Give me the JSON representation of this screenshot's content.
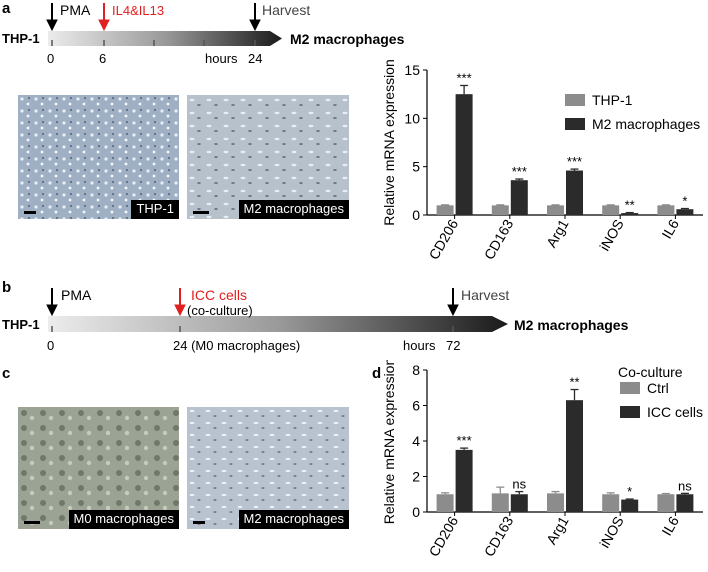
{
  "panels": {
    "a": "a",
    "b": "b",
    "c": "c",
    "d": "d"
  },
  "timeline_a": {
    "cell_line": "THP-1",
    "result": "M2 macrophages",
    "events": {
      "pma": "PMA",
      "cytokines": "IL4&IL13",
      "harvest": "Harvest"
    },
    "ticks": {
      "t0": "0",
      "t6": "6",
      "hours": "hours",
      "t24": "24"
    }
  },
  "timeline_b": {
    "cell_line": "THP-1",
    "result": "M2 macrophages",
    "events": {
      "pma": "PMA",
      "icc": "ICC cells",
      "icc_sub": "(co-culture)",
      "harvest": "Harvest"
    },
    "ticks": {
      "t0": "0",
      "t24": "24 (M0 macrophages)",
      "hours": "hours",
      "t72": "72"
    }
  },
  "photos": {
    "a_left": "THP-1",
    "a_right": "M2 macrophages",
    "c_left": "M0 macrophages",
    "c_right": "M2 macrophages"
  },
  "colors": {
    "control": "#8c8c8c",
    "treated": "#2b2b2b",
    "highlight": "#e02020"
  },
  "chart_data": [
    {
      "type": "bar",
      "panel": "a",
      "categories": [
        "CD206",
        "CD163",
        "Arg1",
        "iNOS",
        "IL6"
      ],
      "series": [
        {
          "name": "THP-1",
          "values": [
            1.0,
            1.0,
            1.0,
            1.0,
            1.0
          ],
          "errors": [
            0.05,
            0.05,
            0.05,
            0.05,
            0.05
          ]
        },
        {
          "name": "M2 macrophages",
          "values": [
            12.5,
            3.6,
            4.6,
            0.2,
            0.6
          ],
          "errors": [
            0.9,
            0.12,
            0.15,
            0.05,
            0.07
          ]
        }
      ],
      "significance": [
        "***",
        "***",
        "***",
        "**",
        "*"
      ],
      "ylabel": "Relative mRNA expression",
      "ylim": [
        0,
        15
      ],
      "yticks": [
        0,
        5,
        10,
        15
      ],
      "legend_title": "",
      "legend_position": "top-right"
    },
    {
      "type": "bar",
      "panel": "d",
      "categories": [
        "CD206",
        "CD163",
        "Arg1",
        "iNOS",
        "IL6"
      ],
      "series": [
        {
          "name": "Ctrl",
          "values": [
            1.0,
            1.05,
            1.05,
            1.0,
            1.0
          ],
          "errors": [
            0.08,
            0.35,
            0.1,
            0.08,
            0.04
          ]
        },
        {
          "name": "ICC cells",
          "values": [
            3.5,
            1.0,
            6.3,
            0.7,
            1.0
          ],
          "errors": [
            0.1,
            0.15,
            0.6,
            0.03,
            0.05
          ]
        }
      ],
      "significance": [
        "***",
        "ns",
        "**",
        "*",
        "ns"
      ],
      "ylabel": "Relative mRNA expression",
      "ylim": [
        0,
        8
      ],
      "yticks": [
        0,
        2,
        4,
        6,
        8
      ],
      "legend_title": "Co-culture",
      "legend_position": "top-right"
    }
  ]
}
